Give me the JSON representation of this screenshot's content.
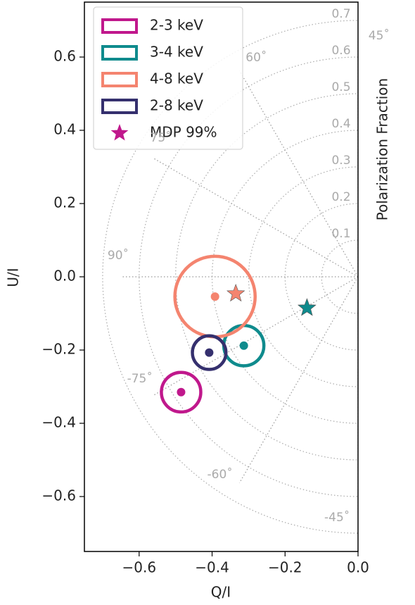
{
  "chart_data": {
    "type": "scatter",
    "x_label": "Q/I",
    "y_label": "U/I",
    "y2_label": "Polarization Fraction",
    "xlim": [
      -0.75,
      0
    ],
    "ylim": [
      -0.75,
      0.75
    ],
    "xticks": [
      {
        "value": -0.6,
        "label": "−0.6"
      },
      {
        "value": -0.4,
        "label": "−0.4"
      },
      {
        "value": -0.2,
        "label": "−0.2"
      },
      {
        "value": 0,
        "label": "0.0"
      }
    ],
    "yticks": [
      0.6,
      0.4,
      0.2,
      {
        "value": 0,
        "label": "0.0"
      },
      {
        "value": -0.2,
        "label": "−0.2"
      },
      {
        "value": -0.4,
        "label": "−0.4"
      },
      {
        "value": -0.6,
        "label": "−0.6"
      }
    ],
    "polar_grid": {
      "radii": [
        0.1,
        0.2,
        0.3,
        0.4,
        0.5,
        0.6,
        0.7
      ],
      "angles": [
        {
          "value": 45,
          "label": "45˚"
        },
        {
          "value": 60,
          "label": "60˚"
        },
        {
          "value": 75,
          "label": "75˚"
        },
        {
          "value": 90,
          "label": "90˚"
        },
        {
          "value": -75,
          "label": "-75˚"
        },
        {
          "value": -60,
          "label": "-60˚"
        },
        {
          "value": -45,
          "label": "-45˚"
        }
      ]
    },
    "legend": "upper left",
    "series": [
      {
        "name": "2-3 keV",
        "color": "#c0188c",
        "x": [
          -0.485
        ],
        "values": [
          -0.315
        ],
        "error_radius": [
          0.054
        ]
      },
      {
        "name": "3-4 keV",
        "color": "#0f8b8d",
        "x": [
          -0.313
        ],
        "values": [
          -0.188
        ],
        "error_radius": [
          0.055
        ]
      },
      {
        "name": "4-8 keV",
        "color": "#f4846f",
        "x": [
          -0.392
        ],
        "values": [
          -0.054
        ],
        "error_radius": [
          0.11
        ]
      },
      {
        "name": "2-8 keV",
        "color": "#35306e",
        "x": [
          -0.408
        ],
        "values": [
          -0.207
        ],
        "error_radius": [
          0.046
        ]
      }
    ],
    "mdp": {
      "name": "MDP 99%",
      "color": "#c0188c",
      "x": [
        -0.14,
        -0.14,
        -0.335
      ],
      "values": [
        -0.085,
        -0.085,
        -0.046
      ],
      "colors": [
        "#c0188c",
        "#0f8b8d",
        "#f4846f"
      ]
    }
  }
}
